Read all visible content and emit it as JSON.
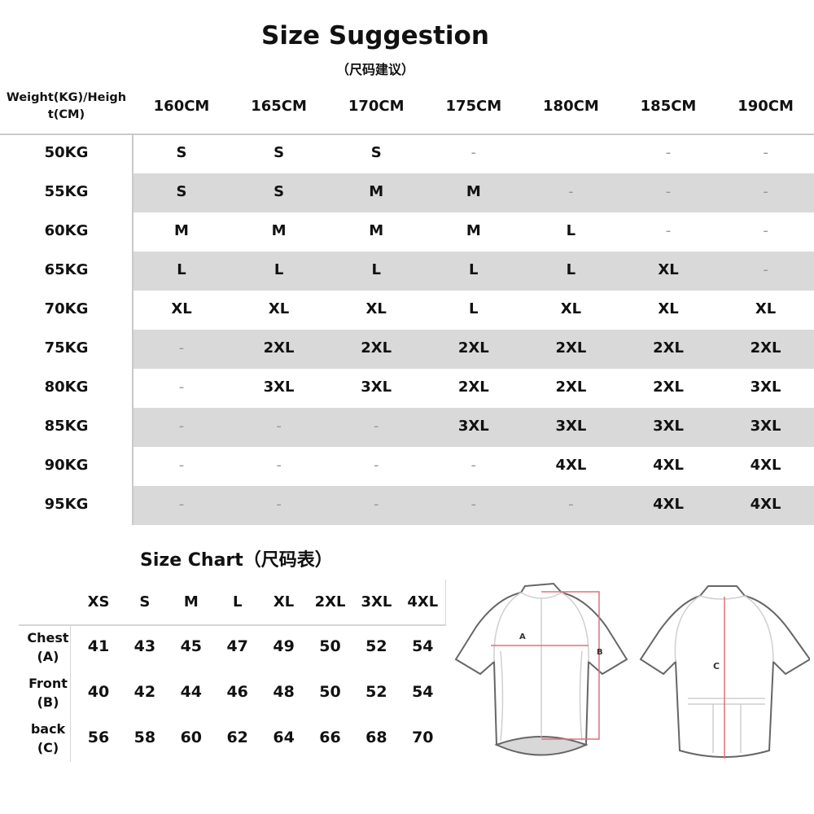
{
  "title": "Size Suggestion",
  "subtitle": "（尺码建议）",
  "suggestion_table": {
    "corner_label": "Weight(KG)/Height(CM)",
    "corner_line1": "Weight(KG)/Heigh",
    "corner_line2": "t(CM)",
    "heights": [
      "160CM",
      "165CM",
      "170CM",
      "175CM",
      "180CM",
      "185CM",
      "190CM"
    ],
    "rows": [
      {
        "weight": "50KG",
        "sizes": [
          "S",
          "S",
          "S",
          "-",
          "",
          "-",
          "-"
        ]
      },
      {
        "weight": "55KG",
        "sizes": [
          "S",
          "S",
          "M",
          "M",
          "-",
          "-",
          "-"
        ]
      },
      {
        "weight": "60KG",
        "sizes": [
          "M",
          "M",
          "M",
          "M",
          "L",
          "-",
          "-"
        ]
      },
      {
        "weight": "65KG",
        "sizes": [
          "L",
          "L",
          "L",
          "L",
          "L",
          "XL",
          "-"
        ]
      },
      {
        "weight": "70KG",
        "sizes": [
          "XL",
          "XL",
          "XL",
          "L",
          "XL",
          "XL",
          "XL"
        ]
      },
      {
        "weight": "75KG",
        "sizes": [
          "-",
          "2XL",
          "2XL",
          "2XL",
          "2XL",
          "2XL",
          "2XL"
        ]
      },
      {
        "weight": "80KG",
        "sizes": [
          "-",
          "3XL",
          "3XL",
          "2XL",
          "2XL",
          "2XL",
          "3XL"
        ]
      },
      {
        "weight": "85KG",
        "sizes": [
          "-",
          "-",
          "-",
          "3XL",
          "3XL",
          "3XL",
          "3XL"
        ]
      },
      {
        "weight": "90KG",
        "sizes": [
          "-",
          "-",
          "-",
          "-",
          "4XL",
          "4XL",
          "4XL"
        ]
      },
      {
        "weight": "95KG",
        "sizes": [
          "-",
          "-",
          "-",
          "-",
          "-",
          "4XL",
          "4XL"
        ]
      }
    ],
    "stripe_color": "#d9d9d9"
  },
  "size_chart": {
    "title": "Size Chart（尺码表）",
    "sizes": [
      "XS",
      "S",
      "M",
      "L",
      "XL",
      "2XL",
      "3XL",
      "4XL"
    ],
    "rows": [
      {
        "label1": "Chest",
        "label2": "(A)",
        "values": [
          "41",
          "43",
          "45",
          "47",
          "49",
          "50",
          "52",
          "54"
        ]
      },
      {
        "label1": "Front",
        "label2": "(B)",
        "values": [
          "40",
          "42",
          "44",
          "46",
          "48",
          "50",
          "52",
          "54"
        ]
      },
      {
        "label1": "back",
        "label2": "(C)",
        "values": [
          "56",
          "58",
          "60",
          "62",
          "64",
          "66",
          "68",
          "70"
        ]
      }
    ]
  },
  "diagram": {
    "front_label_a": "A",
    "front_label_b": "B",
    "back_label_c": "C",
    "measure_color": "#e0707a"
  }
}
